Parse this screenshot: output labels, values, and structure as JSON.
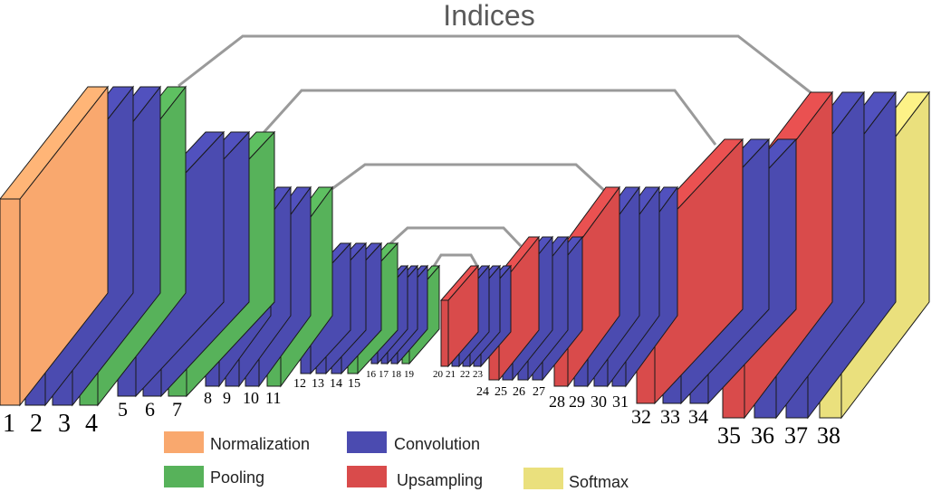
{
  "title": "Indices",
  "colors": {
    "normalization": "#F9A86E",
    "convolution": "#4B4BB0",
    "pooling": "#57B25A",
    "upsampling": "#D94B4B",
    "softmax": "#EAE07D",
    "connector": "#9a9a9a",
    "edge": "#1a1a1a"
  },
  "legend": [
    {
      "key": "normalization",
      "label": "Normalization"
    },
    {
      "key": "convolution",
      "label": "Convolution"
    },
    {
      "key": "pooling",
      "label": "Pooling"
    },
    {
      "key": "upsampling",
      "label": "Upsampling"
    },
    {
      "key": "softmax",
      "label": "Softmax"
    }
  ],
  "layers": [
    {
      "n": "1",
      "type": "normalization"
    },
    {
      "n": "2",
      "type": "convolution"
    },
    {
      "n": "3",
      "type": "convolution"
    },
    {
      "n": "4",
      "type": "pooling"
    },
    {
      "n": "5",
      "type": "convolution"
    },
    {
      "n": "6",
      "type": "convolution"
    },
    {
      "n": "7",
      "type": "pooling"
    },
    {
      "n": "8",
      "type": "convolution"
    },
    {
      "n": "9",
      "type": "convolution"
    },
    {
      "n": "10",
      "type": "convolution"
    },
    {
      "n": "11",
      "type": "pooling"
    },
    {
      "n": "12",
      "type": "convolution"
    },
    {
      "n": "13",
      "type": "convolution"
    },
    {
      "n": "14",
      "type": "convolution"
    },
    {
      "n": "15",
      "type": "pooling"
    },
    {
      "n": "16",
      "type": "convolution"
    },
    {
      "n": "17",
      "type": "convolution"
    },
    {
      "n": "18",
      "type": "convolution"
    },
    {
      "n": "19",
      "type": "pooling"
    },
    {
      "n": "20",
      "type": "upsampling"
    },
    {
      "n": "21",
      "type": "convolution"
    },
    {
      "n": "22",
      "type": "convolution"
    },
    {
      "n": "23",
      "type": "convolution"
    },
    {
      "n": "24",
      "type": "upsampling"
    },
    {
      "n": "25",
      "type": "convolution"
    },
    {
      "n": "26",
      "type": "convolution"
    },
    {
      "n": "27",
      "type": "convolution"
    },
    {
      "n": "28",
      "type": "upsampling"
    },
    {
      "n": "29",
      "type": "convolution"
    },
    {
      "n": "30",
      "type": "convolution"
    },
    {
      "n": "31",
      "type": "convolution"
    },
    {
      "n": "32",
      "type": "upsampling"
    },
    {
      "n": "33",
      "type": "convolution"
    },
    {
      "n": "34",
      "type": "convolution"
    },
    {
      "n": "35",
      "type": "upsampling"
    },
    {
      "n": "36",
      "type": "convolution"
    },
    {
      "n": "37",
      "type": "convolution"
    },
    {
      "n": "38",
      "type": "softmax"
    }
  ]
}
